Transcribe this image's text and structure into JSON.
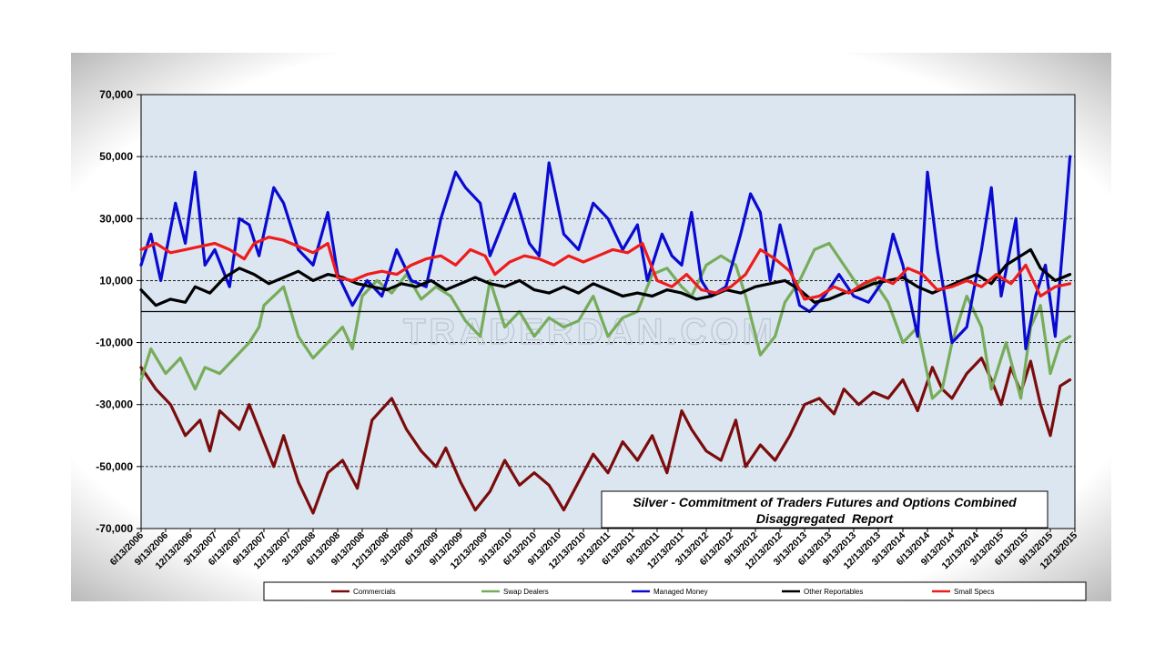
{
  "chart_data": {
    "type": "line",
    "title": "Silver - Commitment of Traders Futures and Options Combined",
    "subtitle": "Disaggregated  Report",
    "watermark": "TRADERDAN.COM",
    "ylim": [
      -70000,
      70000
    ],
    "yticks": [
      70000,
      50000,
      30000,
      10000,
      -10000,
      -30000,
      -50000,
      -70000
    ],
    "ytick_labels": [
      "70,000",
      "50,000",
      "30,000",
      "10,000",
      "-10,000",
      "-30,000",
      "-50,000",
      "-70,000"
    ],
    "xlim": [
      2006.45,
      2015.95
    ],
    "x_tick_values": [
      2006.45,
      2006.7,
      2006.95,
      2007.2,
      2007.45,
      2007.7,
      2007.95,
      2008.2,
      2008.45,
      2008.7,
      2008.95,
      2009.2,
      2009.45,
      2009.7,
      2009.95,
      2010.2,
      2010.45,
      2010.7,
      2010.95,
      2011.2,
      2011.45,
      2011.7,
      2011.95,
      2012.2,
      2012.45,
      2012.7,
      2012.95,
      2013.2,
      2013.45,
      2013.7,
      2013.95,
      2014.2,
      2014.45,
      2014.7,
      2014.95,
      2015.2,
      2015.45,
      2015.7,
      2015.95
    ],
    "x_tick_labels": [
      "6/13/2006",
      "9/13/2006",
      "12/13/2006",
      "3/13/2007",
      "6/13/2007",
      "9/13/2007",
      "12/13/2007",
      "3/13/2008",
      "6/13/2008",
      "9/13/2008",
      "12/13/2008",
      "3/13/2009",
      "6/13/2009",
      "9/13/2009",
      "12/13/2009",
      "3/13/2010",
      "6/13/2010",
      "9/13/2010",
      "12/13/2010",
      "3/13/2011",
      "6/13/2011",
      "9/13/2011",
      "12/13/2011",
      "3/13/2012",
      "6/13/2012",
      "9/13/2012",
      "12/13/2012",
      "3/13/2013",
      "6/13/2013",
      "9/13/2013",
      "12/13/2013",
      "3/13/2014",
      "6/13/2014",
      "9/13/2014",
      "12/13/2014",
      "3/13/2015",
      "6/13/2015",
      "9/13/2015",
      "12/13/2015"
    ],
    "series": [
      {
        "name": "Commercials",
        "color": "#7b0c0c",
        "x": [
          2006.45,
          2006.6,
          2006.75,
          2006.9,
          2007.05,
          2007.15,
          2007.25,
          2007.45,
          2007.55,
          2007.7,
          2007.8,
          2007.9,
          2008.05,
          2008.2,
          2008.35,
          2008.5,
          2008.65,
          2008.8,
          2009.0,
          2009.15,
          2009.3,
          2009.45,
          2009.55,
          2009.7,
          2009.85,
          2010.0,
          2010.15,
          2010.3,
          2010.45,
          2010.6,
          2010.75,
          2010.9,
          2011.05,
          2011.2,
          2011.35,
          2011.5,
          2011.65,
          2011.8,
          2011.95,
          2012.05,
          2012.2,
          2012.35,
          2012.5,
          2012.6,
          2012.75,
          2012.9,
          2013.05,
          2013.2,
          2013.35,
          2013.5,
          2013.6,
          2013.75,
          2013.9,
          2014.05,
          2014.2,
          2014.35,
          2014.5,
          2014.6,
          2014.7,
          2014.85,
          2015.0,
          2015.1,
          2015.2,
          2015.3,
          2015.4,
          2015.5,
          2015.6,
          2015.7,
          2015.8,
          2015.9
        ],
        "y": [
          -18000,
          -25000,
          -30000,
          -40000,
          -35000,
          -45000,
          -32000,
          -38000,
          -30000,
          -42000,
          -50000,
          -40000,
          -55000,
          -65000,
          -52000,
          -48000,
          -57000,
          -35000,
          -28000,
          -38000,
          -45000,
          -50000,
          -44000,
          -55000,
          -64000,
          -58000,
          -48000,
          -56000,
          -52000,
          -56000,
          -64000,
          -55000,
          -46000,
          -52000,
          -42000,
          -48000,
          -40000,
          -52000,
          -32000,
          -38000,
          -45000,
          -48000,
          -35000,
          -50000,
          -43000,
          -48000,
          -40000,
          -30000,
          -28000,
          -33000,
          -25000,
          -30000,
          -26000,
          -28000,
          -22000,
          -32000,
          -18000,
          -25000,
          -28000,
          -20000,
          -15000,
          -22000,
          -30000,
          -18000,
          -26000,
          -16000,
          -30000,
          -40000,
          -24000,
          -22000
        ]
      },
      {
        "name": "Swap Dealers",
        "color": "#77ac5a",
        "x": [
          2006.45,
          2006.55,
          2006.7,
          2006.85,
          2007.0,
          2007.1,
          2007.25,
          2007.4,
          2007.55,
          2007.65,
          2007.7,
          2007.9,
          2008.05,
          2008.2,
          2008.35,
          2008.5,
          2008.6,
          2008.7,
          2008.85,
          2009.0,
          2009.15,
          2009.3,
          2009.45,
          2009.6,
          2009.75,
          2009.9,
          2010.0,
          2010.15,
          2010.3,
          2010.45,
          2010.6,
          2010.75,
          2010.9,
          2011.05,
          2011.2,
          2011.35,
          2011.5,
          2011.65,
          2011.8,
          2011.95,
          2012.05,
          2012.2,
          2012.35,
          2012.5,
          2012.6,
          2012.75,
          2012.9,
          2013.0,
          2013.15,
          2013.3,
          2013.45,
          2013.6,
          2013.75,
          2013.9,
          2014.05,
          2014.2,
          2014.35,
          2014.5,
          2014.6,
          2014.7,
          2014.85,
          2015.0,
          2015.1,
          2015.25,
          2015.4,
          2015.5,
          2015.6,
          2015.7,
          2015.8,
          2015.9
        ],
        "y": [
          -22000,
          -12000,
          -20000,
          -15000,
          -25000,
          -18000,
          -20000,
          -15000,
          -10000,
          -5000,
          2000,
          8000,
          -8000,
          -15000,
          -10000,
          -5000,
          -12000,
          5000,
          10000,
          6000,
          12000,
          4000,
          8000,
          5000,
          -3000,
          -8000,
          10000,
          -5000,
          0,
          -8000,
          -2000,
          -5000,
          -3000,
          5000,
          -8000,
          -2000,
          0,
          12000,
          14000,
          8000,
          5000,
          15000,
          18000,
          15000,
          5000,
          -14000,
          -8000,
          3000,
          10000,
          20000,
          22000,
          15000,
          8000,
          10000,
          3000,
          -10000,
          -5000,
          -28000,
          -25000,
          -10000,
          5000,
          -5000,
          -25000,
          -10000,
          -28000,
          -5000,
          2000,
          -20000,
          -10000,
          -8000
        ]
      },
      {
        "name": "Managed Money",
        "color": "#0a0ad0",
        "x": [
          2006.45,
          2006.55,
          2006.65,
          2006.8,
          2006.9,
          2007.0,
          2007.1,
          2007.2,
          2007.35,
          2007.45,
          2007.55,
          2007.65,
          2007.8,
          2007.9,
          2008.05,
          2008.2,
          2008.35,
          2008.45,
          2008.6,
          2008.75,
          2008.9,
          2009.05,
          2009.2,
          2009.35,
          2009.5,
          2009.65,
          2009.75,
          2009.9,
          2010.0,
          2010.15,
          2010.25,
          2010.4,
          2010.5,
          2010.6,
          2010.75,
          2010.9,
          2011.05,
          2011.2,
          2011.35,
          2011.5,
          2011.6,
          2011.75,
          2011.85,
          2011.95,
          2012.05,
          2012.15,
          2012.25,
          2012.4,
          2012.55,
          2012.65,
          2012.75,
          2012.85,
          2012.95,
          2013.05,
          2013.15,
          2013.25,
          2013.4,
          2013.55,
          2013.7,
          2013.85,
          2014.0,
          2014.1,
          2014.2,
          2014.35,
          2014.45,
          2014.55,
          2014.7,
          2014.85,
          2015.0,
          2015.1,
          2015.2,
          2015.35,
          2015.45,
          2015.55,
          2015.65,
          2015.75,
          2015.85,
          2015.9
        ],
        "y": [
          15000,
          25000,
          10000,
          35000,
          22000,
          45000,
          15000,
          20000,
          8000,
          30000,
          28000,
          18000,
          40000,
          35000,
          20000,
          15000,
          32000,
          12000,
          2000,
          10000,
          5000,
          20000,
          10000,
          8000,
          30000,
          45000,
          40000,
          35000,
          18000,
          30000,
          38000,
          22000,
          18000,
          48000,
          25000,
          20000,
          35000,
          30000,
          20000,
          28000,
          10000,
          25000,
          18000,
          15000,
          32000,
          10000,
          5000,
          8000,
          25000,
          38000,
          32000,
          10000,
          28000,
          15000,
          2000,
          0,
          5000,
          12000,
          5000,
          3000,
          10000,
          25000,
          15000,
          -8000,
          45000,
          20000,
          -10000,
          -5000,
          20000,
          40000,
          5000,
          30000,
          -12000,
          5000,
          15000,
          -8000,
          30000,
          50000
        ]
      },
      {
        "name": "Other Reportables",
        "color": "#000000",
        "x": [
          2006.45,
          2006.6,
          2006.75,
          2006.9,
          2007.0,
          2007.15,
          2007.3,
          2007.45,
          2007.6,
          2007.75,
          2007.9,
          2008.05,
          2008.2,
          2008.35,
          2008.5,
          2008.65,
          2008.8,
          2008.95,
          2009.1,
          2009.25,
          2009.4,
          2009.55,
          2009.7,
          2009.85,
          2010.0,
          2010.15,
          2010.3,
          2010.45,
          2010.6,
          2010.75,
          2010.9,
          2011.05,
          2011.2,
          2011.35,
          2011.5,
          2011.65,
          2011.8,
          2011.95,
          2012.1,
          2012.25,
          2012.4,
          2012.55,
          2012.7,
          2012.85,
          2013.0,
          2013.15,
          2013.3,
          2013.45,
          2013.6,
          2013.75,
          2013.9,
          2014.05,
          2014.2,
          2014.35,
          2014.5,
          2014.65,
          2014.8,
          2014.95,
          2015.1,
          2015.25,
          2015.4,
          2015.5,
          2015.6,
          2015.75,
          2015.9
        ],
        "y": [
          7000,
          2000,
          4000,
          3000,
          8000,
          6000,
          11000,
          14000,
          12000,
          9000,
          11000,
          13000,
          10000,
          12000,
          11000,
          9000,
          8000,
          7000,
          9000,
          8000,
          10000,
          7000,
          9000,
          11000,
          9000,
          8000,
          10000,
          7000,
          6000,
          8000,
          6000,
          9000,
          7000,
          5000,
          6000,
          5000,
          7000,
          6000,
          4000,
          5000,
          7000,
          6000,
          8000,
          9000,
          10000,
          7000,
          3000,
          4000,
          6000,
          7000,
          9000,
          10000,
          11000,
          8000,
          6000,
          8000,
          10000,
          12000,
          9000,
          15000,
          18000,
          20000,
          14000,
          10000,
          12000
        ]
      },
      {
        "name": "Small Specs",
        "color": "#ee1c1c",
        "x": [
          2006.45,
          2006.6,
          2006.75,
          2006.9,
          2007.05,
          2007.2,
          2007.35,
          2007.5,
          2007.6,
          2007.75,
          2007.9,
          2008.05,
          2008.2,
          2008.35,
          2008.45,
          2008.6,
          2008.75,
          2008.9,
          2009.05,
          2009.2,
          2009.35,
          2009.5,
          2009.65,
          2009.8,
          2009.95,
          2010.05,
          2010.2,
          2010.35,
          2010.5,
          2010.65,
          2010.8,
          2010.95,
          2011.1,
          2011.25,
          2011.4,
          2011.55,
          2011.7,
          2011.85,
          2012.0,
          2012.15,
          2012.3,
          2012.45,
          2012.6,
          2012.75,
          2012.9,
          2013.05,
          2013.2,
          2013.35,
          2013.5,
          2013.65,
          2013.8,
          2013.95,
          2014.1,
          2014.25,
          2014.4,
          2014.55,
          2014.7,
          2014.85,
          2015.0,
          2015.15,
          2015.3,
          2015.45,
          2015.6,
          2015.75,
          2015.9
        ],
        "y": [
          20000,
          22000,
          19000,
          20000,
          21000,
          22000,
          20000,
          17000,
          22000,
          24000,
          23000,
          21000,
          19000,
          22000,
          11000,
          10000,
          12000,
          13000,
          12000,
          15000,
          17000,
          18000,
          15000,
          20000,
          18000,
          12000,
          16000,
          18000,
          17000,
          15000,
          18000,
          16000,
          18000,
          20000,
          19000,
          22000,
          10000,
          8000,
          12000,
          7000,
          6000,
          8000,
          12000,
          20000,
          17000,
          13000,
          4000,
          5000,
          8000,
          6000,
          9000,
          11000,
          9000,
          14000,
          12000,
          7000,
          8000,
          10000,
          8000,
          12000,
          9000,
          15000,
          5000,
          8000,
          9000
        ]
      }
    ]
  }
}
